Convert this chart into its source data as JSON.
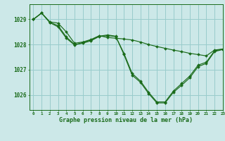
{
  "title": "Graphe pression niveau de la mer (hPa)",
  "background_color": "#cce8e8",
  "grid_color": "#99cccc",
  "line_color": "#1a6b1a",
  "marker_color": "#1a6b1a",
  "xlim": [
    -0.5,
    23
  ],
  "ylim": [
    1025.4,
    1029.6
  ],
  "yticks": [
    1026,
    1027,
    1028,
    1029
  ],
  "xticks": [
    0,
    1,
    2,
    3,
    4,
    5,
    6,
    7,
    8,
    9,
    10,
    11,
    12,
    13,
    14,
    15,
    16,
    17,
    18,
    19,
    20,
    21,
    22,
    23
  ],
  "series": [
    [
      1029.0,
      1029.25,
      1028.9,
      1028.85,
      1028.5,
      1028.05,
      1028.1,
      1028.2,
      1028.35,
      1028.28,
      1028.25,
      1028.22,
      1028.18,
      1028.1,
      1028.0,
      1027.92,
      1027.85,
      1027.78,
      1027.72,
      1027.65,
      1027.6,
      1027.55,
      1027.78,
      1027.82
    ],
    [
      1029.0,
      1029.25,
      1028.88,
      1028.75,
      1028.3,
      1028.0,
      1028.05,
      1028.15,
      1028.32,
      1028.35,
      1028.32,
      1027.65,
      1026.85,
      1026.55,
      1026.1,
      1025.72,
      1025.72,
      1026.15,
      1026.45,
      1026.75,
      1027.18,
      1027.3,
      1027.75,
      1027.82
    ],
    [
      1029.0,
      1029.25,
      1028.87,
      1028.7,
      1028.25,
      1027.98,
      1028.08,
      1028.18,
      1028.33,
      1028.38,
      1028.33,
      1027.6,
      1026.78,
      1026.5,
      1026.05,
      1025.68,
      1025.68,
      1026.1,
      1026.38,
      1026.68,
      1027.12,
      1027.25,
      1027.72,
      1027.8
    ]
  ]
}
